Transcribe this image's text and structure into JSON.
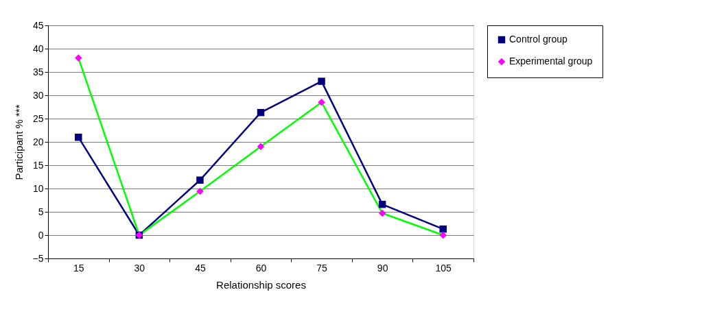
{
  "chart_data": {
    "type": "line",
    "xlabel": "Relationship scores",
    "ylabel": "Participant %  ***",
    "categories": [
      "15",
      "30",
      "45",
      "60",
      "75",
      "90",
      "105"
    ],
    "series": [
      {
        "name": "Control group",
        "color": "#000080",
        "marker": "square",
        "colors": [
          "#000080",
          "#000080",
          "#000080",
          "#000080",
          "#000080",
          "#000080",
          "#000080"
        ],
        "values": [
          21,
          0,
          11.8,
          26.3,
          33,
          6.6,
          1.3
        ]
      },
      {
        "name": "Experimental group",
        "color": "#00ff00",
        "marker": "diamond",
        "colors": [
          "#ff00ff",
          "#ff00ff",
          "#ff00ff",
          "#ff00ff",
          "#ff00ff",
          "#ff00ff",
          "#ff00ff"
        ],
        "values": [
          38,
          0,
          9.4,
          19,
          28.5,
          4.7,
          0
        ]
      }
    ],
    "ylim": [
      -5,
      45
    ],
    "yticks": [
      -5,
      0,
      5,
      10,
      15,
      20,
      25,
      30,
      35,
      40,
      45
    ],
    "grid": "y",
    "legend": "right",
    "line_style": "solid"
  }
}
